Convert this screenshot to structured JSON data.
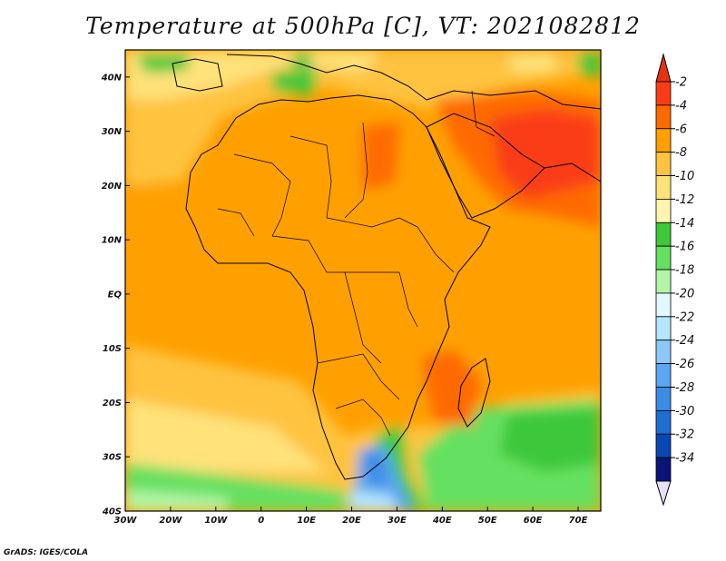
{
  "title": "Temperature at 500hPa [C], VT: 2021082812",
  "credit": "GrADS: IGES/COLA",
  "map": {
    "lon_range": [
      -30,
      75
    ],
    "lat_range": [
      -40,
      45
    ],
    "lat_ticks": [
      {
        "value": 40,
        "label": "40N"
      },
      {
        "value": 30,
        "label": "30N"
      },
      {
        "value": 20,
        "label": "20N"
      },
      {
        "value": 10,
        "label": "10N"
      },
      {
        "value": 0,
        "label": "EQ"
      },
      {
        "value": -10,
        "label": "10S"
      },
      {
        "value": -20,
        "label": "20S"
      },
      {
        "value": -30,
        "label": "30S"
      },
      {
        "value": -40,
        "label": "40S"
      }
    ],
    "lon_ticks": [
      {
        "value": -30,
        "label": "30W"
      },
      {
        "value": -20,
        "label": "20W"
      },
      {
        "value": -10,
        "label": "10W"
      },
      {
        "value": 0,
        "label": "0"
      },
      {
        "value": 10,
        "label": "10E"
      },
      {
        "value": 20,
        "label": "20E"
      },
      {
        "value": 30,
        "label": "30E"
      },
      {
        "value": 40,
        "label": "40E"
      },
      {
        "value": 50,
        "label": "50E"
      },
      {
        "value": 60,
        "label": "60E"
      },
      {
        "value": 70,
        "label": "70E"
      }
    ]
  },
  "colorbar": {
    "levels": [
      {
        "label": "-2",
        "color": "#fa3c14"
      },
      {
        "label": "-4",
        "color": "#ff6a00"
      },
      {
        "label": "-6",
        "color": "#ffa000"
      },
      {
        "label": "-8",
        "color": "#ffc340"
      },
      {
        "label": "-10",
        "color": "#ffe27a"
      },
      {
        "label": "-12",
        "color": "#fff5b0"
      },
      {
        "label": "-14",
        "color": "#3ec83a"
      },
      {
        "label": "-16",
        "color": "#66e060"
      },
      {
        "label": "-18",
        "color": "#b4f5a8"
      },
      {
        "label": "-20",
        "color": "#e0faff"
      },
      {
        "label": "-22",
        "color": "#b4e6ff"
      },
      {
        "label": "-24",
        "color": "#8cc8fa"
      },
      {
        "label": "-26",
        "color": "#5aa6f0"
      },
      {
        "label": "-28",
        "color": "#3c8ce6"
      },
      {
        "label": "-30",
        "color": "#1e6ed2"
      },
      {
        "label": "-32",
        "color": "#0a46b4"
      },
      {
        "label": "-34",
        "color": "#0a1478"
      }
    ],
    "top_arrow_color": "#e63210",
    "bottom_arrow_color": "#e6e0fa"
  }
}
